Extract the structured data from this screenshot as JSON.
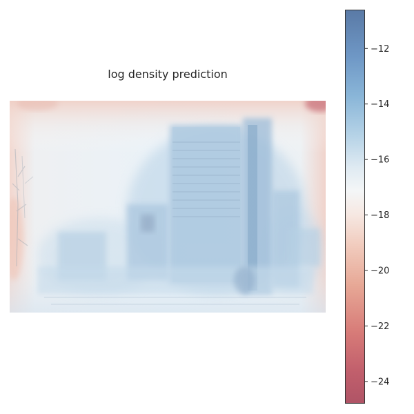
{
  "chart_data": {
    "type": "heatmap",
    "title": "log density prediction",
    "colorbar": {
      "min": -24.8,
      "max": -10.6,
      "ticks": [
        -12,
        -14,
        -16,
        -18,
        -20,
        -22,
        -24
      ],
      "tick_labels": [
        "−12",
        "−14",
        "−16",
        "−18",
        "−20",
        "−22",
        "−24"
      ],
      "colormap": "RdBu",
      "colors": {
        "high": "#5a7aa6",
        "mid": "#f4f6f7",
        "low": "#b05466"
      }
    },
    "image_description": "photograph overlay of tall city buildings with log density shading"
  }
}
